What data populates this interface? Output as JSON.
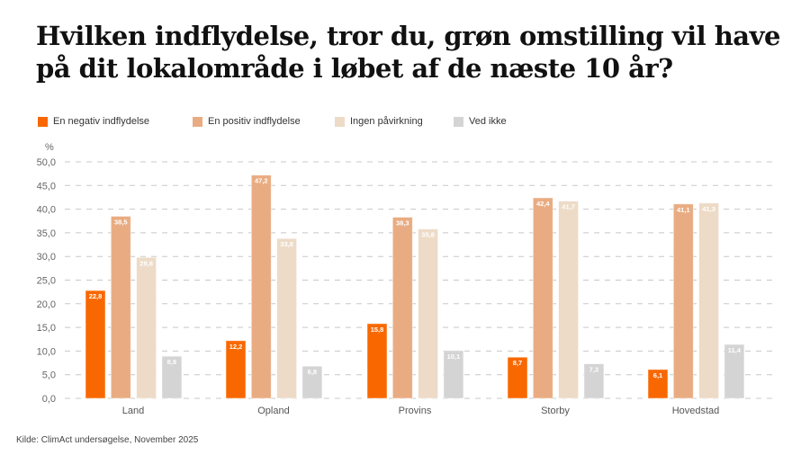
{
  "title_line1": "Hvilken indflydelse, tror du, grøn omstilling vil have",
  "title_line2": "på dit lokalområde i løbet af de næste 10 år?",
  "source": "Kilde: ClimAct undersøgelse, November 2025",
  "chart_data": {
    "type": "bar",
    "title": "Hvilken indflydelse, tror du, grøn omstilling vil have på dit lokalområde i løbet af de næste 10 år?",
    "ylabel": "%",
    "ylim": [
      0,
      50
    ],
    "yticks": [
      "0,0",
      "5,0",
      "10,0",
      "15,0",
      "20,0",
      "25,0",
      "30,0",
      "35,0",
      "40,0",
      "45,0",
      "50,0"
    ],
    "grid": true,
    "legend_position": "top-left",
    "categories": [
      "Land",
      "Opland",
      "Provins",
      "Storby",
      "Hovedstad"
    ],
    "series": [
      {
        "name": "En negativ indflydelse",
        "color": "#F96800",
        "values": [
          22.8,
          12.2,
          15.8,
          8.7,
          6.1
        ],
        "labels": [
          "22,8",
          "12,2",
          "15,8",
          "8,7",
          "6,1"
        ]
      },
      {
        "name": "En positiv indflydelse",
        "color": "#E9AC82",
        "values": [
          38.5,
          47.2,
          38.3,
          42.4,
          41.1
        ],
        "labels": [
          "38,5",
          "47,2",
          "38,3",
          "42,4",
          "41,1"
        ]
      },
      {
        "name": "Ingen påvirkning",
        "color": "#EDDBC7",
        "values": [
          29.8,
          33.8,
          35.8,
          41.7,
          41.3
        ],
        "labels": [
          "29,8",
          "33,8",
          "35,8",
          "41,7",
          "41,3"
        ]
      },
      {
        "name": "Ved ikke",
        "color": "#D4D4D4",
        "values": [
          8.9,
          6.8,
          10.1,
          7.3,
          11.4
        ],
        "labels": [
          "8,9",
          "6,8",
          "10,1",
          "7,3",
          "11,4"
        ]
      }
    ]
  }
}
